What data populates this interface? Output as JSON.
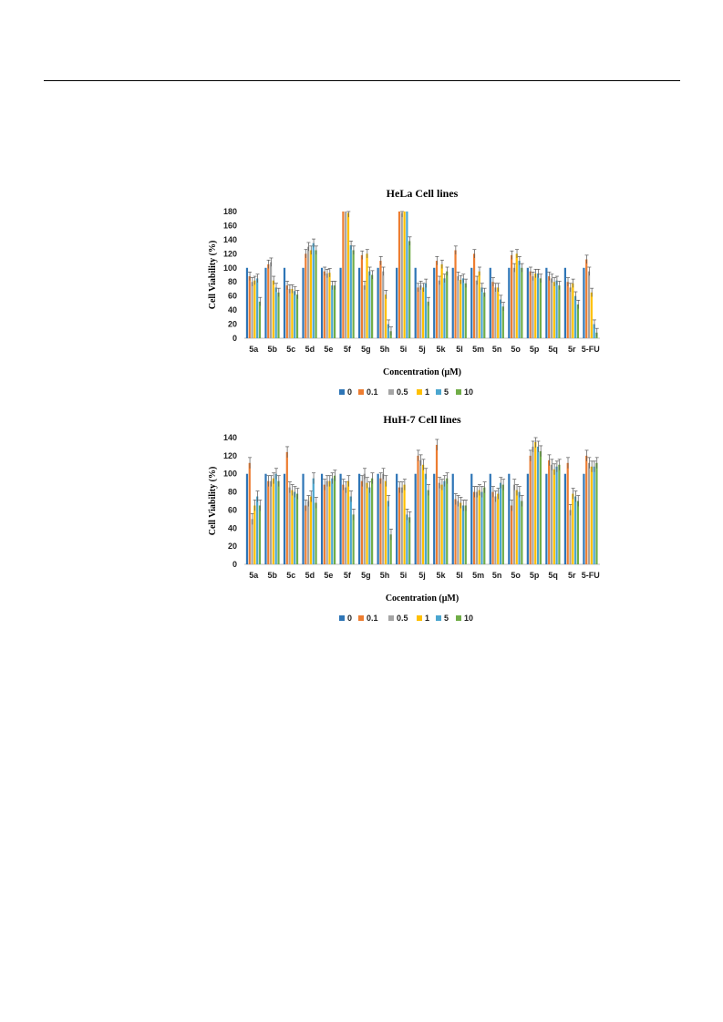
{
  "colors": {
    "0": "#2E75B6",
    "0.1": "#ED7D31",
    "0.5": "#A5A5A5",
    "1": "#FFC000",
    "5": "#4BA6CF",
    "10": "#70AD47"
  },
  "chart_data": [
    {
      "type": "bar",
      "title": "HeLa Cell lines",
      "xlabel": "Concentration (μM)",
      "ylabel": "Cell Viability (%)",
      "ylim": [
        0,
        180
      ],
      "yticks": [
        0,
        20,
        40,
        60,
        80,
        100,
        120,
        140,
        160,
        180
      ],
      "grid": false,
      "legend_position": "bottom",
      "categories": [
        "5a",
        "5b",
        "5c",
        "5d",
        "5e",
        "5f",
        "5g",
        "5h",
        "5i",
        "5j",
        "5k",
        "5l",
        "5m",
        "5n",
        "5o",
        "5p",
        "5q",
        "5r",
        "5-FU"
      ],
      "series": [
        {
          "name": "0",
          "values": [
            100,
            100,
            100,
            100,
            100,
            100,
            100,
            100,
            100,
            100,
            100,
            100,
            100,
            100,
            100,
            100,
            100,
            100,
            100
          ]
        },
        {
          "name": "0.1",
          "values": [
            88,
            105,
            75,
            120,
            95,
            180,
            118,
            110,
            180,
            72,
            110,
            125,
            120,
            80,
            118,
            95,
            88,
            80,
            112
          ]
        },
        {
          "name": "0.5",
          "values": [
            80,
            108,
            70,
            130,
            92,
            180,
            75,
            95,
            178,
            75,
            82,
            88,
            82,
            72,
            100,
            88,
            85,
            72,
            95
          ]
        },
        {
          "name": "1",
          "values": [
            82,
            82,
            70,
            125,
            93,
            178,
            120,
            62,
            180,
            72,
            105,
            83,
            95,
            72,
            120,
            92,
            80,
            78,
            65
          ]
        },
        {
          "name": "5",
          "values": [
            85,
            72,
            67,
            135,
            75,
            132,
            95,
            20,
            180,
            78,
            85,
            85,
            72,
            55,
            110,
            92,
            82,
            60,
            20
          ]
        },
        {
          "name": "10",
          "values": [
            52,
            65,
            62,
            125,
            75,
            125,
            90,
            10,
            138,
            52,
            95,
            78,
            65,
            45,
            100,
            85,
            75,
            48,
            8
          ]
        }
      ]
    },
    {
      "type": "bar",
      "title": "HuH-7 Cell lines",
      "xlabel": "Cocentration (μM)",
      "ylabel": "Cell Viability (%)",
      "ylim": [
        0,
        140
      ],
      "yticks": [
        0,
        20,
        40,
        60,
        80,
        100,
        120,
        140
      ],
      "grid": false,
      "legend_position": "bottom",
      "categories": [
        "5a",
        "5b",
        "5c",
        "5d",
        "5e",
        "5f",
        "5g",
        "5h",
        "5i",
        "5j",
        "5k",
        "5l",
        "5m",
        "5n",
        "5o",
        "5p",
        "5q",
        "5r",
        "5-FU"
      ],
      "series": [
        {
          "name": "0",
          "values": [
            100,
            100,
            100,
            100,
            100,
            100,
            100,
            100,
            100,
            100,
            100,
            100,
            100,
            100,
            100,
            100,
            100,
            100,
            100
          ]
        },
        {
          "name": "0.1",
          "values": [
            112,
            92,
            124,
            65,
            88,
            88,
            92,
            95,
            85,
            120,
            132,
            72,
            80,
            80,
            65,
            120,
            115,
            112,
            120
          ]
        },
        {
          "name": "0.5",
          "values": [
            50,
            92,
            85,
            70,
            92,
            85,
            100,
            100,
            85,
            115,
            90,
            70,
            80,
            75,
            88,
            130,
            110,
            60,
            112
          ]
        },
        {
          "name": "1",
          "values": [
            65,
            95,
            82,
            75,
            92,
            92,
            90,
            92,
            88,
            110,
            88,
            68,
            82,
            78,
            82,
            135,
            105,
            78,
            108
          ]
        },
        {
          "name": "5",
          "values": [
            75,
            100,
            80,
            95,
            95,
            75,
            85,
            70,
            55,
            100,
            92,
            65,
            80,
            90,
            80,
            130,
            108,
            75,
            108
          ]
        },
        {
          "name": "10",
          "values": [
            65,
            92,
            78,
            68,
            98,
            55,
            95,
            33,
            52,
            82,
            95,
            65,
            85,
            88,
            70,
            125,
            110,
            70,
            112
          ]
        }
      ]
    }
  ]
}
